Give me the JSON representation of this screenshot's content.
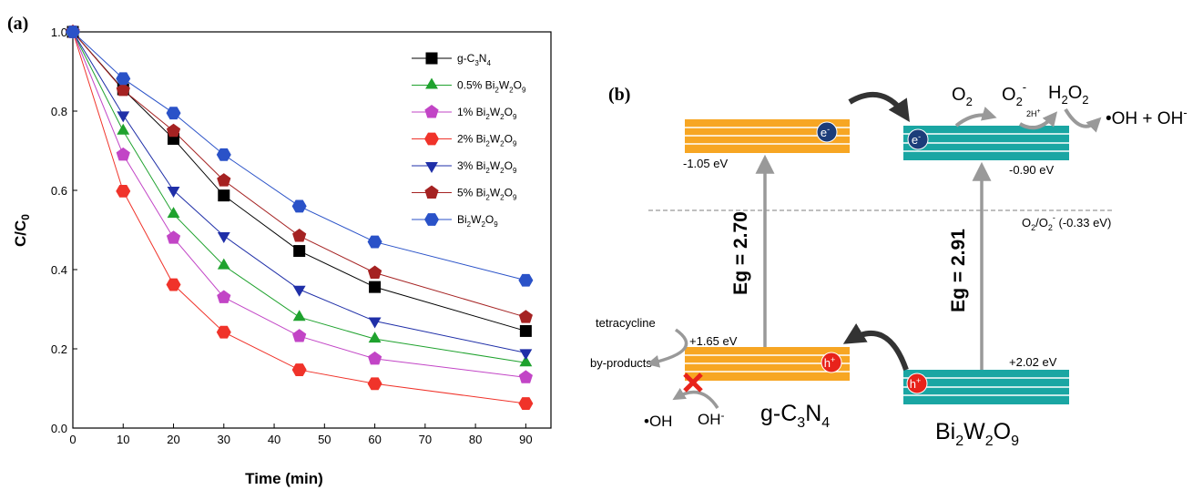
{
  "panel_a_label": "(a)",
  "panel_b_label": "(b)",
  "chart_data": {
    "type": "line",
    "xlabel": "Time (min)",
    "ylabel_main": "C/C",
    "ylabel_sub": "0",
    "xlim": [
      0,
      95
    ],
    "ylim": [
      0,
      1.0
    ],
    "x_ticks": [
      0,
      10,
      20,
      30,
      40,
      50,
      60,
      70,
      80,
      90
    ],
    "y_ticks": [
      0.0,
      0.2,
      0.4,
      0.6,
      0.8,
      1.0
    ],
    "y_tick_labels": [
      "0.0",
      "0.2",
      "0.4",
      "0.6",
      "0.8",
      "1.0"
    ],
    "x": [
      0,
      10,
      20,
      30,
      45,
      60,
      90
    ],
    "legend_position": "top-right",
    "grid": false,
    "series": [
      {
        "name_parts": [
          [
            "g-C",
            "n"
          ],
          [
            "3",
            "sub"
          ],
          [
            "N",
            "n"
          ],
          [
            "4",
            "sub"
          ]
        ],
        "marker": "square",
        "color": "#000000",
        "values": [
          1.0,
          0.855,
          0.73,
          0.587,
          0.447,
          0.356,
          0.245
        ]
      },
      {
        "name_parts": [
          [
            "0.5% Bi",
            "n"
          ],
          [
            "2",
            "sub"
          ],
          [
            "W",
            "n"
          ],
          [
            "2",
            "sub"
          ],
          [
            "O",
            "n"
          ],
          [
            "9",
            "sub"
          ]
        ],
        "marker": "triangle-up",
        "color": "#1fa22e",
        "values": [
          1.0,
          0.75,
          0.54,
          0.41,
          0.28,
          0.225,
          0.165
        ]
      },
      {
        "name_parts": [
          [
            "1% Bi",
            "n"
          ],
          [
            "2",
            "sub"
          ],
          [
            "W",
            "n"
          ],
          [
            "2",
            "sub"
          ],
          [
            "O",
            "n"
          ],
          [
            "9",
            "sub"
          ]
        ],
        "marker": "pentagon",
        "color": "#c245c6",
        "values": [
          1.0,
          0.69,
          0.48,
          0.33,
          0.232,
          0.175,
          0.128
        ]
      },
      {
        "name_parts": [
          [
            "2% Bi",
            "n"
          ],
          [
            "2",
            "sub"
          ],
          [
            "W",
            "n"
          ],
          [
            "2",
            "sub"
          ],
          [
            "O",
            "n"
          ],
          [
            "9",
            "sub"
          ]
        ],
        "marker": "hexagon",
        "color": "#f0332a",
        "values": [
          1.0,
          0.598,
          0.362,
          0.242,
          0.147,
          0.112,
          0.062
        ]
      },
      {
        "name_parts": [
          [
            "3% Bi",
            "n"
          ],
          [
            "2",
            "sub"
          ],
          [
            "W",
            "n"
          ],
          [
            "2",
            "sub"
          ],
          [
            "O",
            "n"
          ],
          [
            "9",
            "sub"
          ]
        ],
        "marker": "triangle-down",
        "color": "#1f2fa8",
        "values": [
          1.0,
          0.79,
          0.6,
          0.485,
          0.35,
          0.27,
          0.19
        ]
      },
      {
        "name_parts": [
          [
            "5% Bi",
            "n"
          ],
          [
            "2",
            "sub"
          ],
          [
            "W",
            "n"
          ],
          [
            "2",
            "sub"
          ],
          [
            "O",
            "n"
          ],
          [
            "9",
            "sub"
          ]
        ],
        "marker": "pentagon",
        "color": "#a52222",
        "values": [
          1.0,
          0.853,
          0.75,
          0.625,
          0.485,
          0.392,
          0.28
        ]
      },
      {
        "name_parts": [
          [
            "Bi",
            "n"
          ],
          [
            "2",
            "sub"
          ],
          [
            "W",
            "n"
          ],
          [
            "2",
            "sub"
          ],
          [
            "O",
            "n"
          ],
          [
            "9",
            "sub"
          ]
        ],
        "marker": "hexagon",
        "color": "#2a52c8",
        "values": [
          1.0,
          0.882,
          0.795,
          0.69,
          0.56,
          0.47,
          0.373
        ]
      }
    ]
  },
  "diagram": {
    "gcn_cb_value": "-1.05 eV",
    "gcn_vb_value": "+1.65 eV",
    "bwo_cb_value": "-0.90 eV",
    "bwo_vb_value": "+2.02 eV",
    "gcn_gap_label": "Eg = 2.70",
    "bwo_gap_label": "Eg = 2.91",
    "electron_label": "e",
    "electron_sup": "-",
    "hole_label": "h",
    "hole_sup": "+",
    "o2": "O",
    "o2_sub": "2",
    "o2rad": "O",
    "o2rad_sub": "2",
    "o2rad_sup": "-",
    "two_h": "2H",
    "two_h_sup": "+",
    "h2o2_a": "H",
    "h2o2_sub1": "2",
    "h2o2_b": "O",
    "h2o2_sub2": "2",
    "oh_products": "•OH + OH",
    "oh_products_sup": "-",
    "ref_o2": "O",
    "ref_o2_sub": "2",
    "ref_slash": "/O",
    "ref_o2b_sub": "2",
    "ref_o2b_sup": "-",
    "ref_value": " (-0.33 eV)",
    "tetracycline": "tetracycline",
    "by_products": "by-products",
    "oh_radical": "•OH",
    "oh_minus": "OH",
    "oh_minus_sup": "-",
    "gcn_name_parts": [
      [
        "g-C",
        "n"
      ],
      [
        "3",
        "sub"
      ],
      [
        "N",
        "n"
      ],
      [
        "4",
        "sub"
      ]
    ],
    "bwo_name_parts": [
      [
        "Bi",
        "n"
      ],
      [
        "2",
        "sub"
      ],
      [
        "W",
        "n"
      ],
      [
        "2",
        "sub"
      ],
      [
        "O",
        "n"
      ],
      [
        "9",
        "sub"
      ]
    ],
    "colors": {
      "gcn_band": "#f7a623",
      "bwo_band": "#1aa6a3",
      "arrow": "#999999",
      "curve": "#333333",
      "electron": "#1c3d7a",
      "hole": "#e8231b"
    }
  }
}
